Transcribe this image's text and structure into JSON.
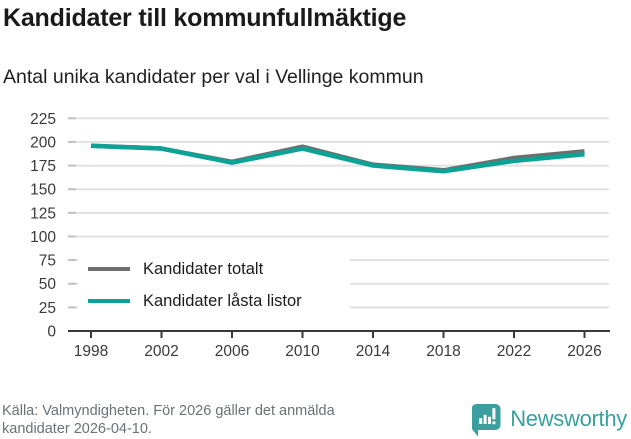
{
  "header": {
    "title": "Kandidater till kommunfullmäktige",
    "subtitle": "Antal unika kandidater per val i Vellinge kommun"
  },
  "chart_data": {
    "type": "line",
    "title": "Kandidater till kommunfullmäktige",
    "subtitle": "Antal unika kandidater per val i Vellinge kommun",
    "x": [
      1998,
      2002,
      2006,
      2010,
      2014,
      2018,
      2022,
      2026
    ],
    "series": [
      {
        "name": "Kandidater totalt",
        "color": "#6e6e6e",
        "values": [
          196,
          193,
          179,
          195,
          176,
          170,
          183,
          190
        ]
      },
      {
        "name": "Kandidater låsta listor",
        "color": "#0aa396",
        "values": [
          196,
          193,
          178,
          193,
          175,
          169,
          180,
          187
        ]
      }
    ],
    "xlabel": "",
    "ylabel": "",
    "ylim": [
      0,
      225
    ],
    "ytick_step": 25,
    "yticks": [
      0,
      25,
      50,
      75,
      100,
      125,
      150,
      175,
      200,
      225
    ],
    "xticks": [
      1998,
      2002,
      2006,
      2010,
      2014,
      2018,
      2022,
      2026
    ],
    "grid": true,
    "legend_position": "inside-bottom-left"
  },
  "colors": {
    "grid": "#e1e1e1",
    "y_tick_dash": "#c2c2c2",
    "axis": "#383838",
    "axis_label": "#3a3a3a",
    "logo_teal": "#3b9f9f",
    "icon_glyph": "#ffffff"
  },
  "footer": {
    "source_line1": "Källa: Valmyndigheten. För 2026 gäller det anmälda",
    "source_line2": "kandidater 2026-04-10.",
    "brand": "Newsworthy"
  },
  "icons": {
    "brand_icon": "newsworthy-speech-bubble-barchart-icon"
  }
}
